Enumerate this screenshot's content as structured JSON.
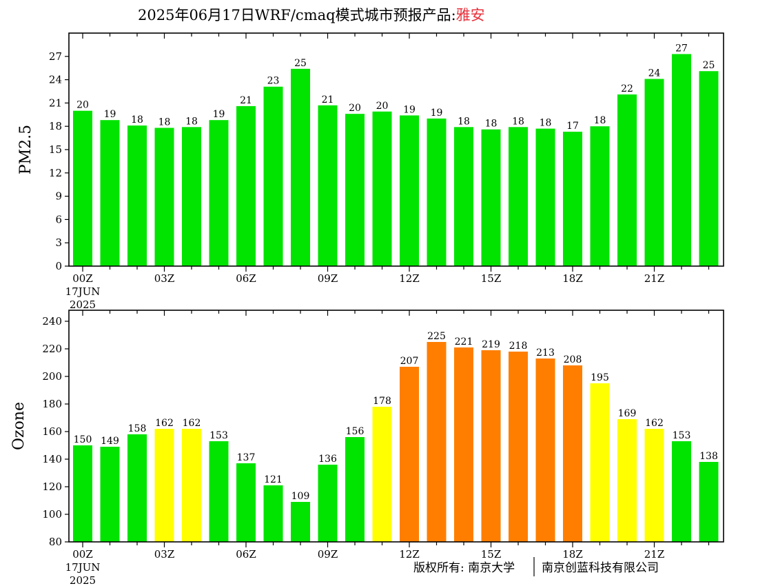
{
  "title": {
    "prefix": "2025年06月17日WRF/cmaq模式城市预报产品:",
    "city": "雅安",
    "city_color": "#e8323c"
  },
  "colors": {
    "green": "#00e400",
    "yellow": "#ffff00",
    "orange": "#ff7e00"
  },
  "x_ticks": [
    {
      "index": 0,
      "label": "00Z"
    },
    {
      "index": 3,
      "label": "03Z"
    },
    {
      "index": 6,
      "label": "06Z"
    },
    {
      "index": 9,
      "label": "09Z"
    },
    {
      "index": 12,
      "label": "12Z"
    },
    {
      "index": 15,
      "label": "15Z"
    },
    {
      "index": 18,
      "label": "18Z"
    },
    {
      "index": 21,
      "label": "21Z"
    }
  ],
  "date_line1": "17JUN",
  "date_line2": "2025",
  "copyright": {
    "left": "版权所有: 南京大学",
    "right": "南京创蓝科技有限公司"
  },
  "chart_data": [
    {
      "type": "bar",
      "ylabel": "PM2.5",
      "ylim": [
        0,
        30
      ],
      "yticks": [
        0,
        3,
        6,
        9,
        12,
        15,
        18,
        21,
        24,
        27
      ],
      "categories": [
        "00Z",
        "01Z",
        "02Z",
        "03Z",
        "04Z",
        "05Z",
        "06Z",
        "07Z",
        "08Z",
        "09Z",
        "10Z",
        "11Z",
        "12Z",
        "13Z",
        "14Z",
        "15Z",
        "16Z",
        "17Z",
        "18Z",
        "19Z",
        "20Z",
        "21Z",
        "22Z",
        "23Z"
      ],
      "values": [
        20.0,
        18.8,
        18.1,
        17.8,
        17.9,
        18.8,
        20.6,
        23.1,
        25.4,
        20.7,
        19.6,
        19.9,
        19.4,
        19.0,
        17.9,
        17.6,
        17.9,
        17.7,
        17.3,
        18.0,
        22.1,
        24.1,
        27.3,
        25.1
      ],
      "labels": [
        "20",
        "19",
        "18",
        "18",
        "18",
        "19",
        "21",
        "23",
        "25",
        "21",
        "20",
        "20",
        "19",
        "19",
        "18",
        "18",
        "18",
        "18",
        "17",
        "18",
        "22",
        "24",
        "27",
        "25"
      ],
      "bar_colors": [
        "green",
        "green",
        "green",
        "green",
        "green",
        "green",
        "green",
        "green",
        "green",
        "green",
        "green",
        "green",
        "green",
        "green",
        "green",
        "green",
        "green",
        "green",
        "green",
        "green",
        "green",
        "green",
        "green",
        "green"
      ]
    },
    {
      "type": "bar",
      "ylabel": "Ozone",
      "ylim": [
        80,
        248
      ],
      "yticks": [
        80,
        100,
        120,
        140,
        160,
        180,
        200,
        220,
        240
      ],
      "categories": [
        "00Z",
        "01Z",
        "02Z",
        "03Z",
        "04Z",
        "05Z",
        "06Z",
        "07Z",
        "08Z",
        "09Z",
        "10Z",
        "11Z",
        "12Z",
        "13Z",
        "14Z",
        "15Z",
        "16Z",
        "17Z",
        "18Z",
        "19Z",
        "20Z",
        "21Z",
        "22Z",
        "23Z"
      ],
      "values": [
        150,
        149,
        158,
        162,
        162,
        153,
        137,
        121,
        109,
        136,
        156,
        178,
        207,
        225,
        221,
        219,
        218,
        213,
        208,
        195,
        169,
        162,
        153,
        138
      ],
      "labels": [
        "150",
        "149",
        "158",
        "162",
        "162",
        "153",
        "137",
        "121",
        "109",
        "136",
        "156",
        "178",
        "207",
        "225",
        "221",
        "219",
        "218",
        "213",
        "208",
        "195",
        "169",
        "162",
        "153",
        "138"
      ],
      "bar_colors": [
        "green",
        "green",
        "green",
        "yellow",
        "yellow",
        "green",
        "green",
        "green",
        "green",
        "green",
        "green",
        "yellow",
        "orange",
        "orange",
        "orange",
        "orange",
        "orange",
        "orange",
        "orange",
        "yellow",
        "yellow",
        "yellow",
        "green",
        "green"
      ]
    }
  ]
}
